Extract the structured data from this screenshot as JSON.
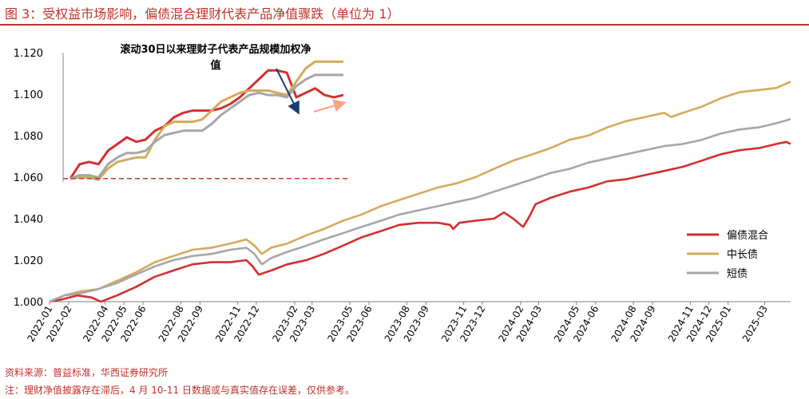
{
  "title": "图 3：受权益市场影响，偏债混合理财代表产品净值骤跌（单位为 1）",
  "notes": {
    "source": "资料来源：普益标准，华西证券研究所",
    "note": "注：理财净值披露存在滞后，4 月 10-11 日数据或与真实值存在误差，仅供参考。"
  },
  "colors": {
    "title": "#c0312b",
    "mixed": "#d32f2f",
    "medium_long": "#d4aa5c",
    "short": "#a6a6a6",
    "arrow_dark": "#1f3b73",
    "arrow_light": "#f4a582"
  },
  "chart_data": [
    {
      "type": "line",
      "ylim": [
        1.0,
        1.12
      ],
      "yticks": [
        "1.000",
        "1.020",
        "1.040",
        "1.060",
        "1.080",
        "1.100",
        "1.120"
      ],
      "xticks": [
        "2022-01",
        "2022-02",
        "2022-04",
        "2022-05",
        "2022-06",
        "2022-08",
        "2022-09",
        "2022-11",
        "2022-12",
        "2023-02",
        "2023-03",
        "2023-05",
        "2023-06",
        "2023-08",
        "2023-09",
        "2023-11",
        "2023-12",
        "2024-02",
        "2024-03",
        "2024-05",
        "2024-06",
        "2024-08",
        "2024-09",
        "2024-11",
        "2024-12",
        "2025-01",
        "2025-03"
      ],
      "legend_position": "right",
      "series": [
        {
          "name": "偏债混合",
          "color": "#d32f2f",
          "points": [
            [
              "2022-01-01",
              1.0
            ],
            [
              "2022-01-20",
              1.001
            ],
            [
              "2022-02-15",
              1.003
            ],
            [
              "2022-03-10",
              1.002
            ],
            [
              "2022-03-25",
              1.0
            ],
            [
              "2022-04-20",
              1.003
            ],
            [
              "2022-05-20",
              1.007
            ],
            [
              "2022-06-20",
              1.012
            ],
            [
              "2022-07-20",
              1.015
            ],
            [
              "2022-08-20",
              1.018
            ],
            [
              "2022-09-20",
              1.019
            ],
            [
              "2022-10-20",
              1.019
            ],
            [
              "2022-11-15",
              1.02
            ],
            [
              "2022-11-25",
              1.017
            ],
            [
              "2022-12-05",
              1.013
            ],
            [
              "2022-12-25",
              1.015
            ],
            [
              "2023-01-20",
              1.018
            ],
            [
              "2023-02-20",
              1.02
            ],
            [
              "2023-03-20",
              1.023
            ],
            [
              "2023-04-20",
              1.027
            ],
            [
              "2023-05-20",
              1.031
            ],
            [
              "2023-06-20",
              1.034
            ],
            [
              "2023-07-20",
              1.037
            ],
            [
              "2023-08-20",
              1.038
            ],
            [
              "2023-09-20",
              1.038
            ],
            [
              "2023-10-10",
              1.037
            ],
            [
              "2023-10-15",
              1.035
            ],
            [
              "2023-10-25",
              1.038
            ],
            [
              "2023-11-20",
              1.039
            ],
            [
              "2023-12-20",
              1.04
            ],
            [
              "2024-01-05",
              1.043
            ],
            [
              "2024-01-20",
              1.04
            ],
            [
              "2024-02-05",
              1.036
            ],
            [
              "2024-02-15",
              1.041
            ],
            [
              "2024-02-25",
              1.047
            ],
            [
              "2024-03-20",
              1.05
            ],
            [
              "2024-04-20",
              1.053
            ],
            [
              "2024-05-20",
              1.055
            ],
            [
              "2024-06-20",
              1.058
            ],
            [
              "2024-07-20",
              1.059
            ],
            [
              "2024-08-20",
              1.061
            ],
            [
              "2024-09-20",
              1.063
            ],
            [
              "2024-10-20",
              1.065
            ],
            [
              "2024-11-20",
              1.068
            ],
            [
              "2024-12-20",
              1.071
            ],
            [
              "2025-01-20",
              1.073
            ],
            [
              "2025-02-20",
              1.074
            ],
            [
              "2025-03-20",
              1.076
            ],
            [
              "2025-04-05",
              1.077
            ],
            [
              "2025-04-12",
              1.076
            ]
          ]
        },
        {
          "name": "中长债",
          "color": "#d4aa5c",
          "points": [
            [
              "2022-01-01",
              1.0
            ],
            [
              "2022-01-25",
              1.003
            ],
            [
              "2022-02-20",
              1.005
            ],
            [
              "2022-03-20",
              1.006
            ],
            [
              "2022-04-20",
              1.01
            ],
            [
              "2022-05-20",
              1.014
            ],
            [
              "2022-06-20",
              1.019
            ],
            [
              "2022-07-20",
              1.022
            ],
            [
              "2022-08-20",
              1.025
            ],
            [
              "2022-09-20",
              1.026
            ],
            [
              "2022-10-20",
              1.028
            ],
            [
              "2022-11-15",
              1.03
            ],
            [
              "2022-11-28",
              1.027
            ],
            [
              "2022-12-10",
              1.023
            ],
            [
              "2022-12-25",
              1.026
            ],
            [
              "2023-01-20",
              1.028
            ],
            [
              "2023-02-20",
              1.032
            ],
            [
              "2023-03-20",
              1.035
            ],
            [
              "2023-04-20",
              1.039
            ],
            [
              "2023-05-20",
              1.042
            ],
            [
              "2023-06-20",
              1.046
            ],
            [
              "2023-07-20",
              1.049
            ],
            [
              "2023-08-20",
              1.052
            ],
            [
              "2023-09-20",
              1.055
            ],
            [
              "2023-10-20",
              1.057
            ],
            [
              "2023-11-20",
              1.06
            ],
            [
              "2023-12-20",
              1.064
            ],
            [
              "2024-01-20",
              1.068
            ],
            [
              "2024-02-20",
              1.071
            ],
            [
              "2024-03-20",
              1.074
            ],
            [
              "2024-04-20",
              1.078
            ],
            [
              "2024-05-20",
              1.08
            ],
            [
              "2024-06-20",
              1.084
            ],
            [
              "2024-07-20",
              1.087
            ],
            [
              "2024-08-20",
              1.089
            ],
            [
              "2024-09-20",
              1.091
            ],
            [
              "2024-10-01",
              1.089
            ],
            [
              "2024-10-20",
              1.091
            ],
            [
              "2024-11-20",
              1.094
            ],
            [
              "2024-12-20",
              1.098
            ],
            [
              "2025-01-20",
              1.101
            ],
            [
              "2025-02-20",
              1.102
            ],
            [
              "2025-03-20",
              1.103
            ],
            [
              "2025-04-12",
              1.106
            ]
          ]
        },
        {
          "name": "短债",
          "color": "#a6a6a6",
          "points": [
            [
              "2022-01-01",
              1.0
            ],
            [
              "2022-01-25",
              1.003
            ],
            [
              "2022-02-20",
              1.004
            ],
            [
              "2022-03-20",
              1.006
            ],
            [
              "2022-04-20",
              1.009
            ],
            [
              "2022-05-20",
              1.013
            ],
            [
              "2022-06-20",
              1.017
            ],
            [
              "2022-07-20",
              1.02
            ],
            [
              "2022-08-20",
              1.022
            ],
            [
              "2022-09-20",
              1.023
            ],
            [
              "2022-10-20",
              1.025
            ],
            [
              "2022-11-15",
              1.026
            ],
            [
              "2022-11-28",
              1.023
            ],
            [
              "2022-12-10",
              1.018
            ],
            [
              "2022-12-25",
              1.021
            ],
            [
              "2023-01-20",
              1.024
            ],
            [
              "2023-02-20",
              1.027
            ],
            [
              "2023-03-20",
              1.03
            ],
            [
              "2023-04-20",
              1.033
            ],
            [
              "2023-05-20",
              1.036
            ],
            [
              "2023-06-20",
              1.039
            ],
            [
              "2023-07-20",
              1.042
            ],
            [
              "2023-08-20",
              1.044
            ],
            [
              "2023-09-20",
              1.046
            ],
            [
              "2023-10-20",
              1.048
            ],
            [
              "2023-11-20",
              1.05
            ],
            [
              "2023-12-20",
              1.053
            ],
            [
              "2024-01-20",
              1.056
            ],
            [
              "2024-02-20",
              1.059
            ],
            [
              "2024-03-20",
              1.062
            ],
            [
              "2024-04-20",
              1.064
            ],
            [
              "2024-05-20",
              1.067
            ],
            [
              "2024-06-20",
              1.069
            ],
            [
              "2024-07-20",
              1.071
            ],
            [
              "2024-08-20",
              1.073
            ],
            [
              "2024-09-20",
              1.075
            ],
            [
              "2024-10-20",
              1.076
            ],
            [
              "2024-11-20",
              1.078
            ],
            [
              "2024-12-20",
              1.081
            ],
            [
              "2025-01-20",
              1.083
            ],
            [
              "2025-02-20",
              1.084
            ],
            [
              "2025-03-20",
              1.086
            ],
            [
              "2025-04-12",
              1.088
            ]
          ]
        }
      ]
    },
    {
      "type": "line",
      "title": "滚动30日以来理财子代表产品规模加权净值",
      "ylim": [
        1.058,
        1.116
      ],
      "reference_line": 1.0595,
      "series": [
        {
          "name": "偏债混合",
          "color": "#d32f2f",
          "values": [
            1.0595,
            1.066,
            1.067,
            1.066,
            1.072,
            1.075,
            1.078,
            1.076,
            1.077,
            1.081,
            1.083,
            1.087,
            1.089,
            1.09,
            1.09,
            1.09,
            1.091,
            1.093,
            1.096,
            1.1,
            1.104,
            1.108,
            1.108,
            1.107,
            1.096,
            1.098,
            1.1,
            1.097,
            1.096,
            1.097
          ]
        },
        {
          "name": "中长债",
          "color": "#d4aa5c",
          "values": [
            1.0595,
            1.06,
            1.06,
            1.059,
            1.064,
            1.067,
            1.068,
            1.069,
            1.069,
            1.077,
            1.083,
            1.085,
            1.085,
            1.085,
            1.086,
            1.09,
            1.094,
            1.096,
            1.098,
            1.099,
            1.099,
            1.099,
            1.098,
            1.097,
            1.103,
            1.109,
            1.112,
            1.112,
            1.112,
            1.112
          ]
        },
        {
          "name": "短债",
          "color": "#a6a6a6",
          "values": [
            1.0595,
            1.061,
            1.061,
            1.06,
            1.066,
            1.069,
            1.071,
            1.071,
            1.072,
            1.076,
            1.079,
            1.08,
            1.081,
            1.081,
            1.081,
            1.084,
            1.088,
            1.091,
            1.094,
            1.097,
            1.098,
            1.097,
            1.097,
            1.096,
            1.101,
            1.104,
            1.106,
            1.106,
            1.106,
            1.106
          ]
        }
      ]
    }
  ]
}
